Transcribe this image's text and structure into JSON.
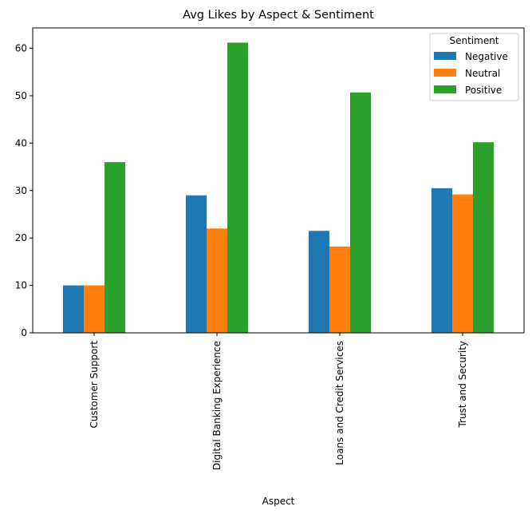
{
  "chart_data": {
    "type": "bar",
    "title": "Avg Likes by Aspect & Sentiment",
    "xlabel": "Aspect",
    "ylabel": "",
    "categories": [
      "Customer Support",
      "Digital Banking Experience",
      "Loans and Credit Services",
      "Trust and Security"
    ],
    "series": [
      {
        "name": "Negative",
        "values": [
          10.0,
          29.0,
          21.5,
          30.5
        ],
        "color": "#1f77b4"
      },
      {
        "name": "Neutral",
        "values": [
          10.0,
          22.0,
          18.2,
          29.2
        ],
        "color": "#ff7f0e"
      },
      {
        "name": "Positive",
        "values": [
          36.0,
          61.2,
          50.7,
          40.2
        ],
        "color": "#2ca02c"
      }
    ],
    "ylim": [
      0,
      64.3
    ],
    "yticks": [
      0,
      10,
      20,
      30,
      40,
      50,
      60
    ],
    "grid": false,
    "legend": {
      "title": "Sentiment",
      "placement": "top-right"
    }
  }
}
